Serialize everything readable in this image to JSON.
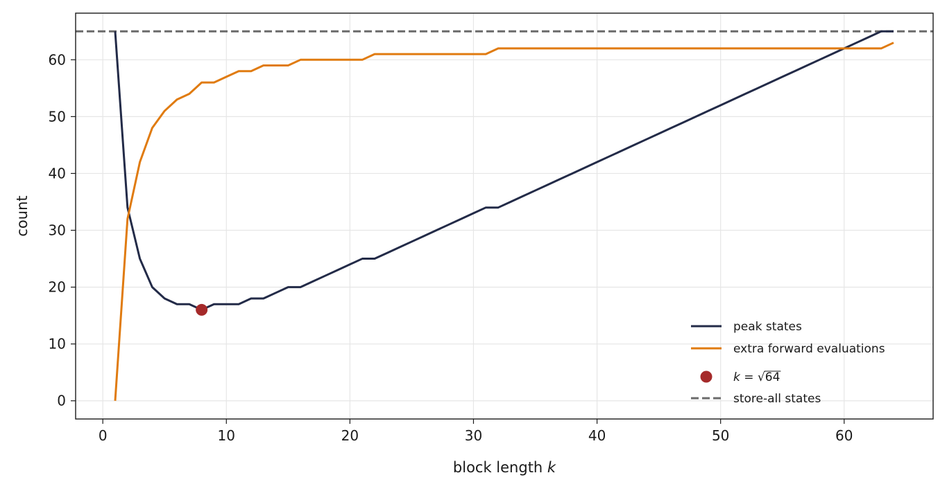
{
  "chart_data": {
    "type": "line",
    "title": "",
    "xlabel": "block length k",
    "xlabel_text": "block length ",
    "xlabel_var": "k",
    "ylabel": "count",
    "xlim": [
      -2.2,
      67.2
    ],
    "ylim": [
      -3.2,
      68.2
    ],
    "xticks": [
      0,
      10,
      20,
      30,
      40,
      50,
      60
    ],
    "yticks": [
      0,
      10,
      20,
      30,
      40,
      50,
      60
    ],
    "grid": true,
    "legend_position": "lower-right",
    "series": [
      {
        "name": "peak states",
        "color": "#232b48",
        "x": [
          1,
          2,
          3,
          4,
          5,
          6,
          7,
          8,
          9,
          10,
          11,
          12,
          13,
          14,
          15,
          16,
          17,
          18,
          19,
          20,
          21,
          22,
          23,
          24,
          25,
          26,
          27,
          28,
          29,
          30,
          31,
          32,
          33,
          34,
          35,
          36,
          37,
          38,
          39,
          40,
          41,
          42,
          43,
          44,
          45,
          46,
          47,
          48,
          49,
          50,
          51,
          52,
          53,
          54,
          55,
          56,
          57,
          58,
          59,
          60,
          61,
          62,
          63,
          64
        ],
        "y": [
          65,
          34,
          25,
          20,
          18,
          17,
          17,
          16,
          17,
          17,
          17,
          18,
          18,
          19,
          20,
          20,
          21,
          22,
          23,
          24,
          25,
          25,
          26,
          27,
          28,
          29,
          30,
          31,
          32,
          33,
          34,
          34,
          35,
          36,
          37,
          38,
          39,
          40,
          41,
          42,
          43,
          44,
          45,
          46,
          47,
          48,
          49,
          50,
          51,
          52,
          53,
          54,
          55,
          56,
          57,
          58,
          59,
          60,
          61,
          62,
          63,
          64,
          65,
          65
        ]
      },
      {
        "name": "extra forward evaluations",
        "color": "#e07b10",
        "x": [
          1,
          2,
          3,
          4,
          5,
          6,
          7,
          8,
          9,
          10,
          11,
          12,
          13,
          14,
          15,
          16,
          17,
          18,
          19,
          20,
          21,
          22,
          23,
          24,
          25,
          26,
          27,
          28,
          29,
          30,
          31,
          32,
          33,
          34,
          35,
          36,
          37,
          38,
          39,
          40,
          41,
          42,
          43,
          44,
          45,
          46,
          47,
          48,
          49,
          50,
          51,
          52,
          53,
          54,
          55,
          56,
          57,
          58,
          59,
          60,
          61,
          62,
          63,
          64
        ],
        "y": [
          0,
          32,
          42,
          48,
          51,
          53,
          54,
          56,
          56,
          57,
          58,
          58,
          59,
          59,
          59,
          60,
          60,
          60,
          60,
          60,
          60,
          61,
          61,
          61,
          61,
          61,
          61,
          61,
          61,
          61,
          61,
          62,
          62,
          62,
          62,
          62,
          62,
          62,
          62,
          62,
          62,
          62,
          62,
          62,
          62,
          62,
          62,
          62,
          62,
          62,
          62,
          62,
          62,
          62,
          62,
          62,
          62,
          62,
          62,
          62,
          62,
          62,
          62,
          63
        ]
      }
    ],
    "marker": {
      "name": "k = √64",
      "x": 8,
      "y": 16,
      "color": "#a52a2a"
    },
    "reference_line": {
      "name": "store-all states",
      "y": 65,
      "color": "#6b6b6b"
    }
  },
  "legend": {
    "items": [
      {
        "label": "peak states"
      },
      {
        "label": "extra forward evaluations"
      },
      {
        "label_prefix": "k = ",
        "label_sqrt": "64"
      },
      {
        "label": "store-all states"
      }
    ]
  }
}
